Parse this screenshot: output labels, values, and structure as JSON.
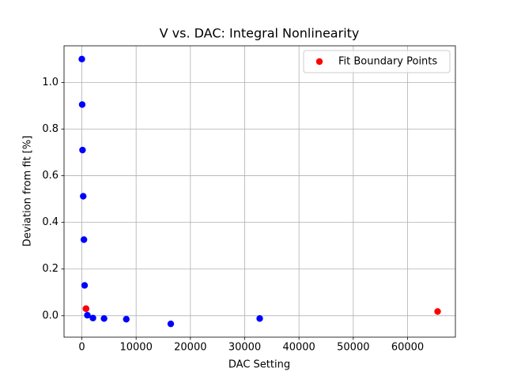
{
  "chart_data": {
    "type": "scatter",
    "title": "V vs. DAC: Integral Nonlinearity",
    "x_label": "DAC Setting",
    "y_label": "Deviation from fit [%]",
    "series": [
      {
        "color": "#0000ff",
        "x": [
          0,
          64,
          128,
          256,
          384,
          512,
          768,
          1024,
          2048,
          4096,
          8192,
          16384,
          32768
        ],
        "values": [
          1.1,
          0.905,
          0.71,
          0.512,
          0.326,
          0.13,
          0.03,
          0.002,
          -0.01,
          -0.012,
          -0.015,
          -0.035,
          -0.012
        ]
      },
      {
        "name": "Fit Boundary Points",
        "color": "#ff0000",
        "x": [
          768,
          65535
        ],
        "values": [
          0.03,
          0.018
        ]
      }
    ],
    "xlim": [
      -3276.75,
      68811.75
    ],
    "ylim": [
      -0.092,
      1.157
    ],
    "xticks": [
      0,
      10000,
      20000,
      30000,
      40000,
      50000,
      60000
    ],
    "yticks": [
      {
        "value": 0,
        "label": "0.0"
      },
      0.2,
      0.4,
      0.6,
      0.8,
      {
        "value": 1,
        "label": "1.0"
      }
    ],
    "grid": true,
    "legend": "upper right"
  }
}
